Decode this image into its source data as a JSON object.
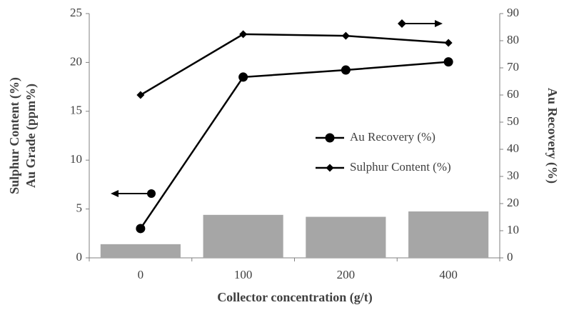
{
  "chart_data": {
    "type": "bar-line",
    "xlabel": "Collector concentration (g/t)",
    "ylabel": [
      "Sulphur Content (%)",
      "Au Grade (ppm%)"
    ],
    "y2label": "Au Recovery (%)",
    "categories": [
      "0",
      "100",
      "200",
      "400"
    ],
    "bars": {
      "color": "#a6a6a6",
      "values": [
        1.4,
        4.4,
        4.2,
        4.75
      ]
    },
    "series": [
      {
        "name": "Au Recovery (%)",
        "color": "#000000",
        "marker": "circle",
        "axis": "y2",
        "values": [
          10.8,
          66.6,
          69.2,
          72.2
        ]
      },
      {
        "name": "Sulphur Content (%)",
        "color": "#000000",
        "marker": "diamond",
        "axis": "y2",
        "values": [
          60,
          82.4,
          81.8,
          79.2
        ]
      }
    ],
    "ylim": [
      0,
      25
    ],
    "yticks": [
      0,
      5,
      10,
      15,
      20,
      25
    ],
    "y2lim": [
      0,
      90
    ],
    "y2ticks": [
      0,
      10,
      20,
      30,
      40,
      50,
      60,
      70,
      80,
      90
    ]
  }
}
